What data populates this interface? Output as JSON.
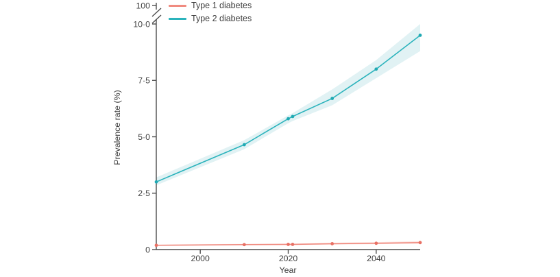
{
  "chart_data": {
    "type": "line",
    "title": "",
    "xlabel": "Year",
    "ylabel": "Prevalence rate (%)",
    "x": [
      1990,
      2010,
      2020,
      2021,
      2030,
      2040,
      2050
    ],
    "xlim": [
      1990,
      2050
    ],
    "ylim": [
      0,
      10
    ],
    "grid": false,
    "legend_position": "top-left",
    "xticks": {
      "values": [
        2000,
        2020,
        2040
      ],
      "labels": [
        "2000",
        "2020",
        "2040"
      ]
    },
    "yticks": {
      "values": [
        0,
        2.5,
        5.0,
        7.5,
        10.0
      ],
      "labels": [
        "0",
        "2·5",
        "5·0",
        "7·5",
        "10·0"
      ]
    },
    "axis_break": {
      "top_value": 100,
      "top_label": "100"
    },
    "series": [
      {
        "name": "Type 1 diabetes",
        "color": "#f08b80",
        "dot_color": "#e87064",
        "band_color": "#fbe3df",
        "values": [
          0.19,
          0.22,
          0.23,
          0.23,
          0.26,
          0.28,
          0.31
        ],
        "ci_lower": [
          0.16,
          0.19,
          0.2,
          0.2,
          0.22,
          0.24,
          0.26
        ],
        "ci_upper": [
          0.22,
          0.25,
          0.26,
          0.26,
          0.3,
          0.33,
          0.37
        ]
      },
      {
        "name": "Type 2 diabetes",
        "color": "#2bb3bc",
        "dot_color": "#1fa9b3",
        "band_color": "#e1f2f4",
        "values": [
          3.0,
          4.65,
          5.8,
          5.9,
          6.7,
          8.0,
          9.5
        ],
        "ci_lower": [
          2.85,
          4.45,
          5.6,
          5.7,
          6.4,
          7.6,
          8.8
        ],
        "ci_upper": [
          3.2,
          4.85,
          5.95,
          6.05,
          7.1,
          8.4,
          10.0
        ]
      }
    ],
    "colors": {
      "axis": "#4c4c4c",
      "text": "#3d3d3d",
      "background": "#ffffff"
    }
  }
}
